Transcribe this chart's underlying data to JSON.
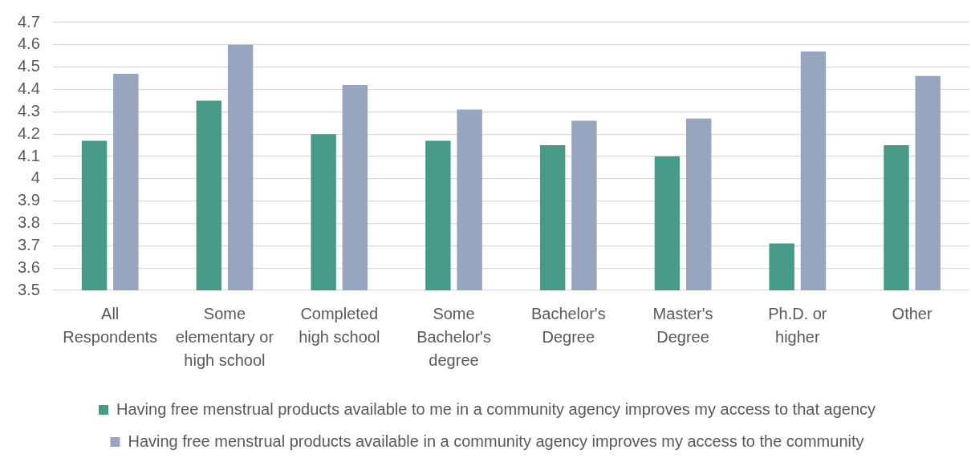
{
  "chart_data": {
    "type": "bar",
    "categories": [
      "All Respondents",
      "Some elementary or high school",
      "Completed high school",
      "Some Bachelor's degree",
      "Bachelor's Degree",
      "Master's Degree",
      "Ph.D. or higher",
      "Other"
    ],
    "series": [
      {
        "name": "Having free menstrual products available to me in a community agency improves my access to that agency",
        "color": "#489a88",
        "values": [
          4.17,
          4.35,
          4.2,
          4.17,
          4.15,
          4.1,
          3.71,
          4.15
        ]
      },
      {
        "name": "Having free menstrual products available in a community agency improves my access to the community",
        "color": "#97a5bf",
        "values": [
          4.47,
          4.6,
          4.42,
          4.31,
          4.26,
          4.27,
          4.57,
          4.46
        ]
      }
    ],
    "ylim": [
      3.5,
      4.7
    ],
    "yticks": [
      3.5,
      3.6,
      3.7,
      3.8,
      3.9,
      4,
      4.1,
      4.2,
      4.3,
      4.4,
      4.5,
      4.6,
      4.7
    ],
    "grid": "y",
    "legend": "bottom"
  }
}
